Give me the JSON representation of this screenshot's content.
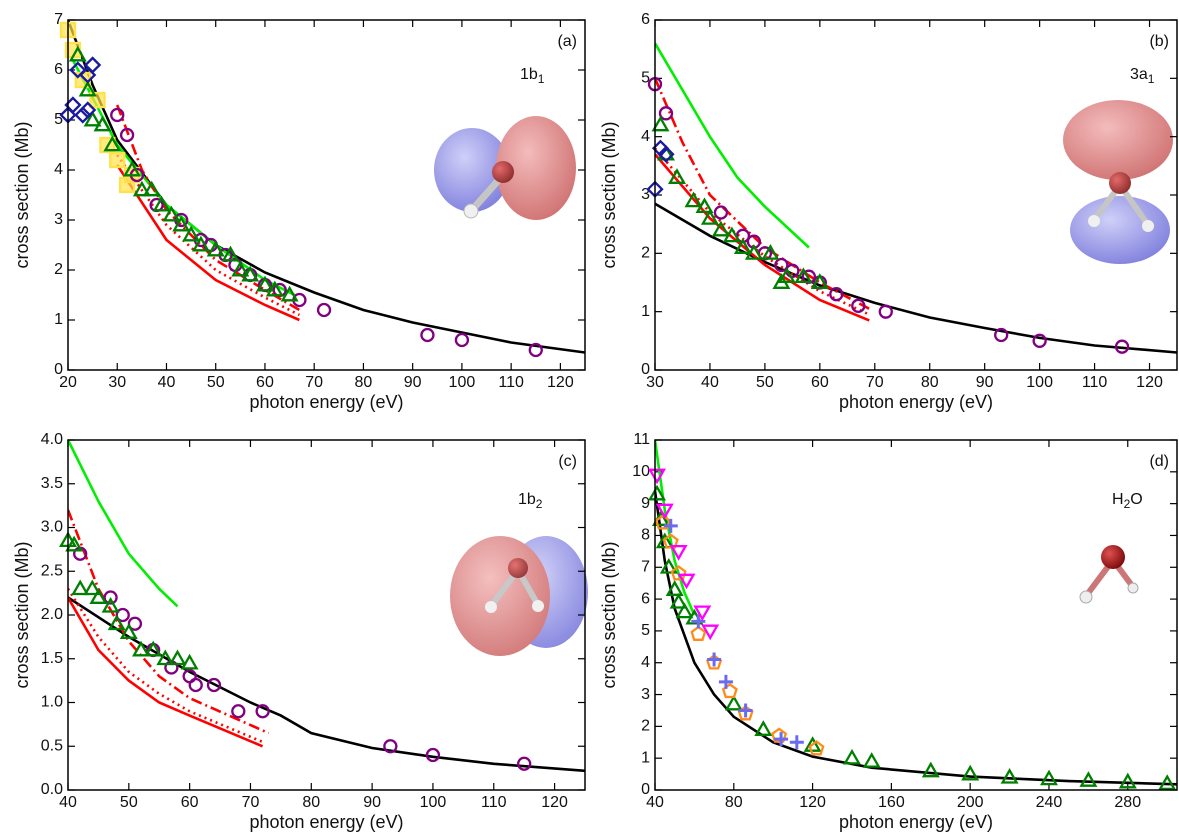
{
  "chart_data": [
    {
      "type": "line",
      "panel_label": "(a)",
      "annotation": [
        "1b",
        "1"
      ],
      "x_label": "photon energy (eV)",
      "y_label": "cross section (Mb)",
      "xlim": [
        20,
        125
      ],
      "ylim": [
        0,
        7
      ],
      "xticks": [
        20,
        30,
        40,
        50,
        60,
        70,
        80,
        90,
        100,
        110,
        120
      ],
      "yticks": [
        0,
        1,
        2,
        3,
        4,
        5,
        6,
        7
      ],
      "series": [
        {
          "color": "#ffe24a",
          "marker": "square",
          "x": [
            20,
            21,
            23,
            26,
            28,
            30,
            32,
            33
          ],
          "values": [
            6.8,
            6.4,
            5.8,
            5.4,
            4.5,
            4.2,
            3.7,
            3.9
          ]
        },
        {
          "color": "#000000",
          "dash": "solid",
          "x": [
            20,
            25,
            30,
            40,
            50,
            60,
            70,
            80,
            90,
            100,
            110,
            125
          ],
          "values": [
            7.0,
            5.7,
            4.6,
            3.3,
            2.5,
            1.95,
            1.55,
            1.2,
            0.95,
            0.75,
            0.55,
            0.35
          ]
        },
        {
          "color": "#00ee00",
          "dash": "solid",
          "x": [
            21,
            30,
            40,
            50,
            60,
            66
          ],
          "values": [
            6.2,
            4.5,
            3.3,
            2.5,
            1.8,
            1.5
          ]
        },
        {
          "color": "#ff0000",
          "dash": "solid",
          "x": [
            30,
            40,
            50,
            60,
            67
          ],
          "values": [
            4.1,
            2.6,
            1.8,
            1.3,
            1.0
          ]
        },
        {
          "color": "#ff0000",
          "dash": "dot",
          "x": [
            30,
            40,
            50,
            60,
            67
          ],
          "values": [
            4.3,
            2.9,
            2.0,
            1.45,
            1.1
          ]
        },
        {
          "color": "#ff0000",
          "dash": "dashdot",
          "x": [
            30,
            35,
            40,
            50,
            60,
            67
          ],
          "values": [
            5.3,
            4.0,
            3.2,
            2.2,
            1.6,
            1.2
          ]
        },
        {
          "color": "#800080",
          "marker": "circle",
          "x": [
            30,
            32,
            34,
            38,
            43,
            47,
            49,
            52,
            54,
            57,
            60,
            63,
            67,
            72,
            93,
            100,
            115
          ],
          "values": [
            5.1,
            4.7,
            3.9,
            3.3,
            3.0,
            2.6,
            2.5,
            2.3,
            2.1,
            1.9,
            1.7,
            1.6,
            1.4,
            1.2,
            0.7,
            0.6,
            0.4
          ]
        },
        {
          "color": "#008000",
          "marker": "triangle",
          "x": [
            22,
            24,
            25,
            27,
            29,
            33,
            35,
            37,
            39,
            41,
            43,
            45,
            47,
            50,
            53,
            55,
            57,
            60,
            62,
            65
          ],
          "values": [
            6.3,
            5.6,
            5.0,
            4.9,
            4.5,
            4.0,
            3.6,
            3.6,
            3.3,
            3.1,
            2.9,
            2.7,
            2.5,
            2.4,
            2.3,
            2.0,
            1.9,
            1.7,
            1.6,
            1.5
          ]
        },
        {
          "color": "#1a1aa0",
          "marker": "diamond",
          "x": [
            20,
            21,
            22,
            23,
            24,
            25,
            24
          ],
          "values": [
            5.1,
            5.3,
            6.0,
            5.1,
            5.9,
            6.1,
            5.2
          ]
        }
      ]
    },
    {
      "type": "line",
      "panel_label": "(b)",
      "annotation": [
        "3a",
        "1"
      ],
      "x_label": "photon energy (eV)",
      "y_label": "cross section (Mb)",
      "xlim": [
        30,
        125
      ],
      "ylim": [
        0,
        6
      ],
      "xticks": [
        30,
        40,
        50,
        60,
        70,
        80,
        90,
        100,
        110,
        120
      ],
      "yticks": [
        0,
        1,
        2,
        3,
        4,
        5,
        6
      ],
      "series": [
        {
          "color": "#000000",
          "dash": "solid",
          "x": [
            30,
            40,
            50,
            60,
            70,
            80,
            90,
            100,
            110,
            125
          ],
          "values": [
            2.85,
            2.3,
            1.85,
            1.45,
            1.15,
            0.9,
            0.72,
            0.55,
            0.42,
            0.3
          ]
        },
        {
          "color": "#00ee00",
          "dash": "solid",
          "x": [
            30,
            35,
            40,
            45,
            50,
            58
          ],
          "values": [
            5.6,
            4.8,
            4.0,
            3.3,
            2.8,
            2.1
          ]
        },
        {
          "color": "#ff0000",
          "dash": "solid",
          "x": [
            30,
            40,
            50,
            60,
            69
          ],
          "values": [
            3.7,
            2.6,
            1.8,
            1.2,
            0.85
          ]
        },
        {
          "color": "#ff0000",
          "dash": "dot",
          "x": [
            30,
            40,
            50,
            60,
            69
          ],
          "values": [
            3.8,
            2.7,
            1.95,
            1.35,
            0.95
          ]
        },
        {
          "color": "#ff0000",
          "dash": "dashdot",
          "x": [
            30,
            35,
            40,
            50,
            60,
            69
          ],
          "values": [
            5.0,
            3.9,
            3.0,
            2.1,
            1.5,
            1.05
          ]
        },
        {
          "color": "#800080",
          "marker": "circle",
          "x": [
            30,
            32,
            42,
            46,
            48,
            50,
            53,
            55,
            58,
            60,
            63,
            67,
            72,
            93,
            100,
            115
          ],
          "values": [
            4.9,
            4.4,
            2.7,
            2.3,
            2.2,
            2.0,
            1.8,
            1.7,
            1.6,
            1.5,
            1.3,
            1.1,
            1.0,
            0.6,
            0.5,
            0.4
          ]
        },
        {
          "color": "#008000",
          "marker": "triangle",
          "x": [
            31,
            32,
            34,
            37,
            39,
            40,
            42,
            44,
            46,
            48,
            51,
            53,
            54,
            57,
            60
          ],
          "values": [
            4.2,
            3.7,
            3.3,
            2.9,
            2.8,
            2.6,
            2.4,
            2.3,
            2.1,
            2.0,
            2.0,
            1.5,
            1.6,
            1.6,
            1.5
          ]
        },
        {
          "color": "#1a1aa0",
          "marker": "diamond",
          "x": [
            30,
            31,
            32
          ],
          "values": [
            3.1,
            3.8,
            3.7
          ]
        }
      ]
    },
    {
      "type": "line",
      "panel_label": "(c)",
      "annotation": [
        "1b",
        "2"
      ],
      "x_label": "photon energy (eV)",
      "y_label": "cross section (Mb)",
      "xlim": [
        40,
        125
      ],
      "ylim": [
        0,
        4
      ],
      "xticks": [
        40,
        50,
        60,
        70,
        80,
        90,
        100,
        110,
        120
      ],
      "yticks": [
        {
          "value": 0,
          "label": "0.0"
        },
        0.5,
        {
          "value": 1,
          "label": "1.0"
        },
        1.5,
        {
          "value": 2,
          "label": "2.0"
        },
        2.5,
        {
          "value": 3,
          "label": "3.0"
        },
        3.5,
        {
          "value": 4,
          "label": "4.0"
        }
      ],
      "series": [
        {
          "color": "#000000",
          "dash": "solid",
          "x": [
            40,
            50,
            60,
            70,
            75,
            80,
            90,
            100,
            110,
            125
          ],
          "values": [
            2.2,
            1.75,
            1.35,
            1.0,
            0.85,
            0.65,
            0.48,
            0.38,
            0.3,
            0.22
          ]
        },
        {
          "color": "#00ee00",
          "dash": "solid",
          "x": [
            40,
            45,
            50,
            55,
            58
          ],
          "values": [
            4.0,
            3.3,
            2.7,
            2.3,
            2.1
          ]
        },
        {
          "color": "#ff0000",
          "dash": "solid",
          "x": [
            40,
            45,
            50,
            55,
            60,
            72
          ],
          "values": [
            2.2,
            1.6,
            1.25,
            1.0,
            0.85,
            0.5
          ]
        },
        {
          "color": "#ff0000",
          "dash": "dot",
          "x": [
            40,
            45,
            50,
            55,
            60,
            72
          ],
          "values": [
            2.3,
            1.75,
            1.35,
            1.1,
            0.9,
            0.55
          ]
        },
        {
          "color": "#ff0000",
          "dash": "dashdot",
          "x": [
            40,
            45,
            50,
            55,
            60,
            73
          ],
          "values": [
            3.2,
            2.3,
            1.7,
            1.3,
            1.05,
            0.65
          ]
        },
        {
          "color": "#800080",
          "marker": "circle",
          "x": [
            42,
            47,
            49,
            51,
            54,
            57,
            60,
            61,
            64,
            68,
            72,
            93,
            100,
            115
          ],
          "values": [
            2.7,
            2.2,
            2.0,
            1.9,
            1.6,
            1.4,
            1.3,
            1.2,
            1.2,
            0.9,
            0.9,
            0.5,
            0.4,
            0.3
          ]
        },
        {
          "color": "#008000",
          "marker": "triangle",
          "x": [
            40,
            41,
            42,
            44,
            45,
            47,
            48,
            50,
            52,
            54,
            56,
            58,
            60
          ],
          "values": [
            2.85,
            2.8,
            2.3,
            2.3,
            2.2,
            2.1,
            1.9,
            1.8,
            1.6,
            1.6,
            1.5,
            1.5,
            1.45
          ]
        }
      ]
    },
    {
      "type": "line",
      "panel_label": "(d)",
      "annotation": [
        "H",
        "2",
        "O"
      ],
      "x_label": "photon energy (eV)",
      "y_label": "cross section (Mb)",
      "xlim": [
        40,
        305
      ],
      "ylim": [
        0,
        11
      ],
      "xticks": [
        40,
        80,
        120,
        160,
        200,
        240,
        280
      ],
      "yticks": [
        0,
        1,
        2,
        3,
        4,
        5,
        6,
        7,
        8,
        9,
        10,
        11
      ],
      "series": [
        {
          "color": "#000000",
          "dash": "solid",
          "x": [
            40,
            45,
            50,
            60,
            70,
            80,
            100,
            120,
            150,
            200,
            250,
            305
          ],
          "values": [
            9.4,
            7.2,
            5.7,
            4.0,
            3.0,
            2.3,
            1.5,
            1.05,
            0.7,
            0.42,
            0.28,
            0.18
          ]
        },
        {
          "color": "#00ee00",
          "dash": "solid",
          "x": [
            40,
            45,
            50,
            55,
            60
          ],
          "values": [
            11.0,
            8.8,
            7.2,
            6.2,
            5.5
          ]
        },
        {
          "color": "#008000",
          "marker": "triangle",
          "x": [
            41,
            43,
            45,
            47,
            50,
            52,
            55,
            60,
            80,
            95,
            120,
            140,
            150,
            180,
            200,
            220,
            240,
            260,
            280,
            300
          ],
          "values": [
            9.3,
            8.5,
            7.8,
            7.0,
            6.3,
            5.9,
            5.6,
            5.4,
            2.7,
            1.9,
            1.4,
            1.0,
            0.9,
            0.6,
            0.5,
            0.4,
            0.35,
            0.3,
            0.25,
            0.2
          ]
        },
        {
          "color": "#ff8c1a",
          "marker": "pentagon",
          "x": [
            44,
            48,
            52,
            62,
            70,
            78,
            86,
            103,
            122
          ],
          "values": [
            8.4,
            7.8,
            6.8,
            4.9,
            4.0,
            3.1,
            2.4,
            1.7,
            1.3
          ]
        },
        {
          "color": "#6a6af0",
          "marker": "plus",
          "x": [
            48,
            62,
            70,
            76,
            86,
            104,
            112
          ],
          "values": [
            8.3,
            5.3,
            4.1,
            3.4,
            2.5,
            1.6,
            1.5
          ]
        },
        {
          "color": "#ff00ff",
          "marker": "down-triangle",
          "x": [
            41,
            45,
            52,
            56,
            64,
            68
          ],
          "values": [
            9.9,
            8.8,
            7.5,
            6.6,
            5.6,
            5.0
          ]
        }
      ]
    }
  ]
}
